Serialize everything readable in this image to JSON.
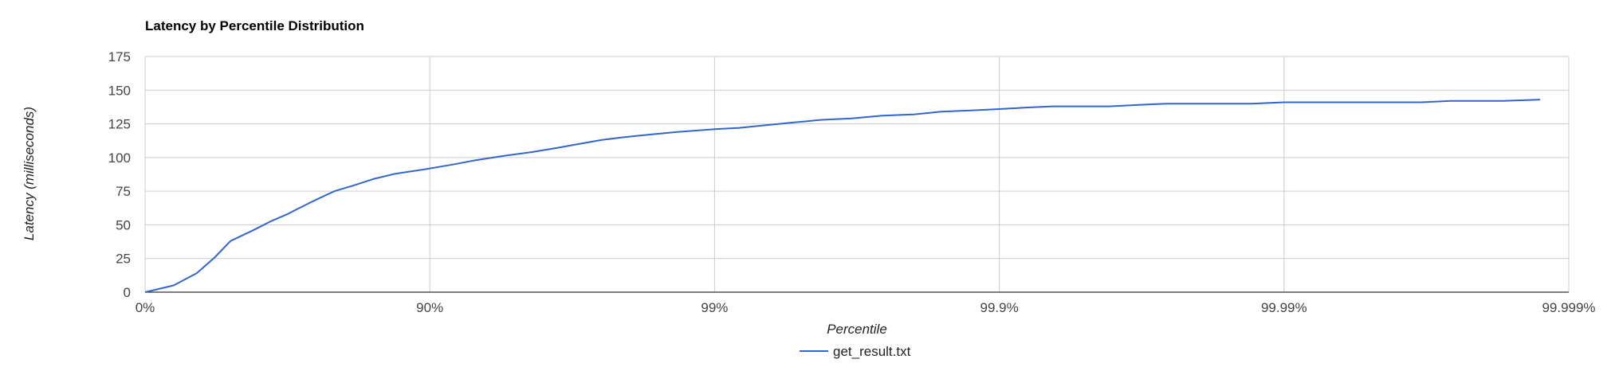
{
  "chart_data": {
    "type": "line",
    "title": "Latency by Percentile Distribution",
    "xlabel": "Percentile",
    "ylabel": "Latency (milliseconds)",
    "x_scale": "log-percentile",
    "xlim": [
      0,
      99.999
    ],
    "x_ticks": [
      "0%",
      "90%",
      "99%",
      "99.9%",
      "99.99%",
      "99.999%"
    ],
    "ylim": [
      0,
      175
    ],
    "y_ticks": [
      0,
      25,
      50,
      75,
      100,
      125,
      150,
      175
    ],
    "grid": true,
    "legend": "bottom",
    "series": [
      {
        "name": "get_result.txt",
        "color": "#3366cc",
        "x": [
          0,
          20.6,
          34.1,
          43.2,
          49.9,
          58.3,
          64.1,
          68.4,
          71.6,
          75.1,
          78.4,
          81.3,
          84.2,
          86.8,
          89.4,
          90.7,
          91.8,
          93.1,
          94.4,
          95.6,
          96.4,
          97.0,
          97.5,
          97.9,
          98.3,
          98.65,
          99.0,
          99.18,
          99.34,
          99.47,
          99.58,
          99.67,
          99.74,
          99.8,
          99.84,
          99.874,
          99.9,
          99.918,
          99.935,
          99.948,
          99.959,
          99.967,
          99.974,
          99.979,
          99.983,
          99.987,
          99.99,
          99.9918,
          99.9935,
          99.9948,
          99.9959,
          99.9967,
          99.9974,
          99.9979,
          99.9983,
          99.99874
        ],
        "y": [
          0,
          5,
          14,
          26,
          38,
          46,
          53,
          58,
          63,
          69,
          75,
          79,
          84,
          88,
          91,
          93,
          95,
          98,
          101,
          104,
          107,
          110,
          113,
          115,
          117,
          119,
          121,
          122,
          124,
          126,
          128,
          129,
          131,
          132,
          134,
          135,
          136,
          137,
          138,
          138,
          138,
          139,
          140,
          140,
          140,
          140,
          141,
          141,
          141,
          141,
          141,
          141,
          142,
          142,
          142,
          143
        ]
      }
    ]
  }
}
